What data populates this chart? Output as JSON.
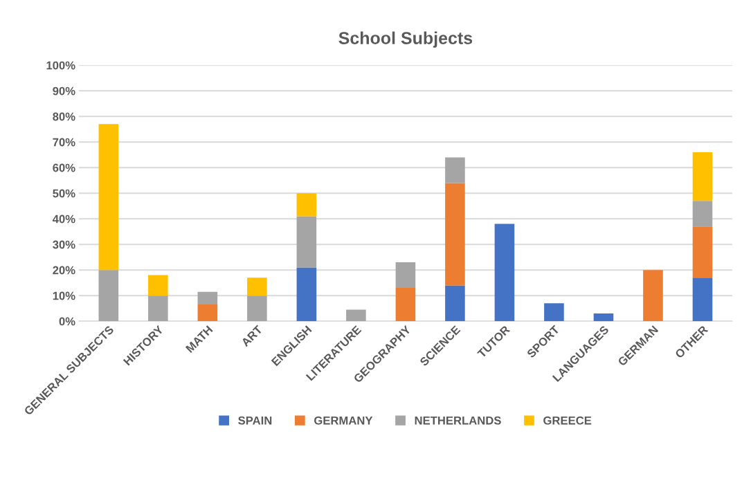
{
  "chart_data": {
    "type": "bar",
    "title": "School Subjects",
    "stacked": true,
    "categories": [
      "GENERAL SUBJECTS",
      "HISTORY",
      "MATH",
      "ART",
      "ENGLISH",
      "LITERATURE",
      "GEOGRAPHY",
      "SCIENCE",
      "TUTOR",
      "SPORT",
      "LANGUAGES",
      "GERMAN",
      "OTHER"
    ],
    "series": [
      {
        "name": "SPAIN",
        "color": "#4472c4",
        "values": [
          0,
          0,
          0,
          0,
          21,
          0,
          0,
          14,
          38,
          7,
          3,
          0,
          17
        ]
      },
      {
        "name": "GERMANY",
        "color": "#ed7d31",
        "values": [
          0,
          0,
          6.5,
          0,
          0,
          0,
          13,
          40,
          0,
          0,
          0,
          20,
          20
        ]
      },
      {
        "name": "NETHERLANDS",
        "color": "#a5a5a5",
        "values": [
          20,
          10,
          5,
          10,
          20,
          4.5,
          10,
          10,
          0,
          0,
          0,
          0,
          10
        ]
      },
      {
        "name": "GREECE",
        "color": "#ffc000",
        "values": [
          57,
          8,
          0,
          7,
          9,
          0,
          0,
          0,
          0,
          0,
          0,
          0,
          19
        ]
      }
    ],
    "ylim": [
      0,
      100
    ],
    "yticks": [
      {
        "value": 0,
        "label": "0%"
      },
      {
        "value": 10,
        "label": "10%"
      },
      {
        "value": 20,
        "label": "20%"
      },
      {
        "value": 30,
        "label": "30%"
      },
      {
        "value": 40,
        "label": "40%"
      },
      {
        "value": 50,
        "label": "50%"
      },
      {
        "value": 60,
        "label": "60%"
      },
      {
        "value": 70,
        "label": "70%"
      },
      {
        "value": 80,
        "label": "80%"
      },
      {
        "value": 90,
        "label": "90%"
      },
      {
        "value": 100,
        "label": "100%"
      }
    ],
    "grid": "y",
    "legend": "bottom"
  }
}
